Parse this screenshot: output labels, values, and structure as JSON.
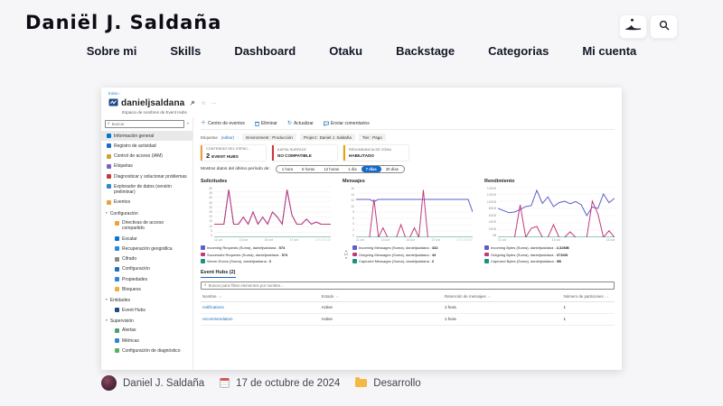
{
  "site": {
    "logo": "Daniël J. Saldaña",
    "nav": [
      "Sobre mi",
      "Skills",
      "Dashboard",
      "Otaku",
      "Backstage",
      "Categorias",
      "Mi cuenta"
    ],
    "header_icons": [
      "mountain-icon",
      "search-icon"
    ]
  },
  "post_meta": {
    "author": "Daniel J. Saldaña",
    "date": "17 de octubre de 2024",
    "category": "Desarrollo"
  },
  "portal": {
    "breadcrumb": "Inicio",
    "title": "danieljsaldana",
    "subtitle": "Espacio de nombres de Event Hubs",
    "search_placeholder": "Buscar",
    "sidebar": [
      {
        "label": "Información general",
        "icon": "overview-icon",
        "color": "#0078d4",
        "selected": true
      },
      {
        "label": "Registro de actividad",
        "icon": "activity-log-icon",
        "color": "#1b6ec2"
      },
      {
        "label": "Control de acceso (IAM)",
        "icon": "access-control-icon",
        "color": "#c7a339"
      },
      {
        "label": "Etiquetas",
        "icon": "tags-icon",
        "color": "#7b61c4"
      },
      {
        "label": "Diagnosticar y solucionar problemas",
        "icon": "diagnose-icon",
        "color": "#d13438"
      },
      {
        "label": "Explorador de datos (versión preliminar)",
        "icon": "data-explorer-icon",
        "color": "#2b88d8"
      },
      {
        "label": "Eventos",
        "icon": "events-icon",
        "color": "#e8a33d"
      },
      {
        "label": "Configuración",
        "section": true
      },
      {
        "label": "Directivas de acceso compartido",
        "icon": "shared-access-policies-icon",
        "color": "#e8a33d",
        "indent": 1
      },
      {
        "label": "Escalar",
        "icon": "scale-icon",
        "color": "#0078d4",
        "indent": 1
      },
      {
        "label": "Recuperación geográfica",
        "icon": "geo-recovery-icon",
        "color": "#2b88d8",
        "indent": 1
      },
      {
        "label": "Cifrado",
        "icon": "encryption-icon",
        "color": "#8a8886",
        "indent": 1
      },
      {
        "label": "Configuración",
        "icon": "settings-icon",
        "color": "#1b6ec2",
        "indent": 1
      },
      {
        "label": "Propiedades",
        "icon": "properties-icon",
        "color": "#2b88d8",
        "indent": 1
      },
      {
        "label": "Bloqueos",
        "icon": "locks-icon",
        "color": "#e8b339",
        "indent": 1
      },
      {
        "label": "Entidades",
        "section": true
      },
      {
        "label": "Event Hubs",
        "icon": "event-hubs-icon",
        "color": "#1b4a8a",
        "indent": 1
      },
      {
        "label": "Supervisión",
        "section": true
      },
      {
        "label": "Alertas",
        "icon": "alerts-icon",
        "color": "#4ca06c",
        "indent": 1
      },
      {
        "label": "Métricas",
        "icon": "metrics-icon",
        "color": "#2b88d8",
        "indent": 1
      },
      {
        "label": "Configuración de diagnóstico",
        "icon": "diagnostic-settings-icon",
        "color": "#5bb25b",
        "indent": 1
      }
    ],
    "toolbar": [
      {
        "label": "Centro de eventos",
        "icon": "plus-icon"
      },
      {
        "label": "Eliminar",
        "icon": "trash-icon"
      },
      {
        "label": "Actualizar",
        "icon": "refresh-icon"
      },
      {
        "label": "Enviar comentarios",
        "icon": "feedback-icon"
      }
    ],
    "tags": {
      "label": "Etiquetas",
      "edit": "(editar)",
      "colon": ":",
      "chips": [
        "Environment : Producción",
        "Project : Daniel J. Saldaña",
        "Tier : Pago"
      ]
    },
    "info_cards": [
      {
        "title": "CONTENIDO DEL ESPAC...",
        "big": "2",
        "value": "EVENT HUBS",
        "color": "#e8a33d"
      },
      {
        "title": "KAFKA SURFACE",
        "value": "NO COMPATIBLE",
        "color": "#d13438"
      },
      {
        "title": "REDUNDANCIA DE ZONA",
        "value": "HABILITADO",
        "color": "#eaa300"
      }
    ],
    "time_range": {
      "label": "Mostrar datos del último período de:",
      "options": [
        "1 hora",
        "6 horas",
        "12 horas",
        "1 día",
        "7 días",
        "30 días"
      ],
      "selected": 4
    },
    "table": {
      "title": "Event Hubs (2)",
      "search_placeholder": "Buscar para filtrar elementos por nombre...",
      "headers": [
        "Nombre",
        "Estado",
        "Retención de mensajes",
        "Número de particiones"
      ],
      "rows": [
        {
          "name": "notifications",
          "status": "Active",
          "retention": "1 hora",
          "partitions": "1"
        },
        {
          "name": "recommendation",
          "status": "Active",
          "retention": "1 hora",
          "partitions": "1"
        }
      ]
    }
  },
  "chart_data": [
    {
      "type": "line",
      "title": "Solicitudes",
      "ylim": [
        0,
        50
      ],
      "y_ticks": [
        "50",
        "45",
        "40",
        "35",
        "30",
        "25",
        "20",
        "15",
        "10",
        "5",
        "0"
      ],
      "x_ticks": [
        "11 oct",
        "13 oct",
        "15 oct",
        "17 oct"
      ],
      "x_note": "UTC+02:00",
      "grid": true,
      "legend_position": "bottom",
      "series": [
        {
          "name": "Incoming Requests (Suma), danieljsaldana",
          "value": "574",
          "color": "#5b5fc7",
          "points": [
            13,
            13,
            13,
            47,
            13,
            13,
            20,
            13,
            25,
            13,
            20,
            13,
            25,
            20,
            13,
            47,
            22,
            13,
            13,
            18,
            13,
            15,
            13,
            13,
            13
          ]
        },
        {
          "name": "Successful Requests (Suma), danieljsaldana",
          "value": "574",
          "color": "#c03b7c",
          "points": [
            13,
            13,
            13,
            47,
            13,
            13,
            20,
            13,
            25,
            13,
            20,
            13,
            25,
            20,
            13,
            47,
            22,
            13,
            13,
            18,
            13,
            15,
            13,
            13,
            13
          ]
        },
        {
          "name": "Server Errors (Suma), danieljsaldana",
          "value": "0",
          "color": "#1f9082",
          "points": [
            0,
            0,
            0,
            0,
            0,
            0,
            0,
            0,
            0,
            0,
            0,
            0,
            0,
            0,
            0,
            0,
            0,
            0,
            0,
            0,
            0,
            0,
            0,
            0,
            0
          ]
        }
      ]
    },
    {
      "type": "line",
      "title": "Mensajes",
      "ylim": [
        0,
        16
      ],
      "y_ticks": [
        "16",
        "14",
        "12",
        "10",
        "8",
        "6",
        "4",
        "2",
        "0"
      ],
      "x_ticks": [
        "11 oct",
        "13 oct",
        "15 oct",
        "17 oct"
      ],
      "x_note": "UTC+02:00",
      "grid": true,
      "pager": "1/2",
      "legend_position": "bottom",
      "series": [
        {
          "name": "Incoming Messages (Suma), danieljsaldana",
          "value": "332",
          "color": "#5b5fc7",
          "points": [
            12,
            12,
            12,
            12,
            11.3,
            12,
            12,
            12,
            12,
            12,
            12,
            12,
            12,
            12,
            12,
            12,
            12,
            12,
            12,
            12,
            12,
            12,
            12,
            12,
            12,
            12,
            8
          ]
        },
        {
          "name": "Outgoing Messages (Suma), danieljsaldana",
          "value": "43",
          "color": "#c03b7c",
          "points": [
            0,
            0,
            0,
            0,
            12,
            0,
            3,
            0,
            0,
            0,
            4,
            0,
            0,
            3,
            0,
            15,
            0,
            0,
            0,
            0,
            0,
            0,
            0,
            0,
            0,
            0,
            0
          ]
        },
        {
          "name": "Captured Messages (Suma), danieljsaldana",
          "value": "0",
          "color": "#1f9082",
          "points": [
            0,
            0,
            0,
            0,
            0,
            0,
            0,
            0,
            0,
            0,
            0,
            0,
            0,
            0,
            0,
            0,
            0,
            0,
            0,
            0,
            0,
            0,
            0,
            0,
            0,
            0,
            0
          ]
        }
      ]
    },
    {
      "type": "line",
      "title": "Rendimiento",
      "ylim": [
        0,
        140
      ],
      "y_ticks": [
        "140KB",
        "120KB",
        "100KB",
        "80KB",
        "60KB",
        "40KB",
        "20KB",
        "0B"
      ],
      "x_ticks": [
        "11 oct",
        "13 oct",
        "15 oct"
      ],
      "grid": true,
      "legend_position": "bottom",
      "series": [
        {
          "name": "Incoming Bytes (Suma), danieljsaldana",
          "value": "2,32MB",
          "color": "#5b5fc7",
          "points": [
            80,
            74,
            68,
            70,
            77,
            85,
            88,
            130,
            94,
            112,
            85,
            96,
            100,
            93,
            99,
            90,
            60,
            84,
            80,
            120,
            96,
            108
          ]
        },
        {
          "name": "Outgoing Bytes (Suma), danieljsaldana",
          "value": "371KB",
          "color": "#c03b7c",
          "points": [
            0,
            0,
            0,
            0,
            90,
            0,
            25,
            30,
            0,
            0,
            35,
            0,
            0,
            15,
            0,
            0,
            0,
            100,
            65,
            0,
            18,
            0
          ]
        },
        {
          "name": "Captured Bytes (Suma), danieljsaldana",
          "value": "0B",
          "color": "#1f9082",
          "points": [
            0,
            0,
            0,
            0,
            0,
            0,
            0,
            0,
            0,
            0,
            0,
            0,
            0,
            0,
            0,
            0,
            0,
            0,
            0,
            0,
            0,
            0
          ]
        }
      ]
    }
  ]
}
